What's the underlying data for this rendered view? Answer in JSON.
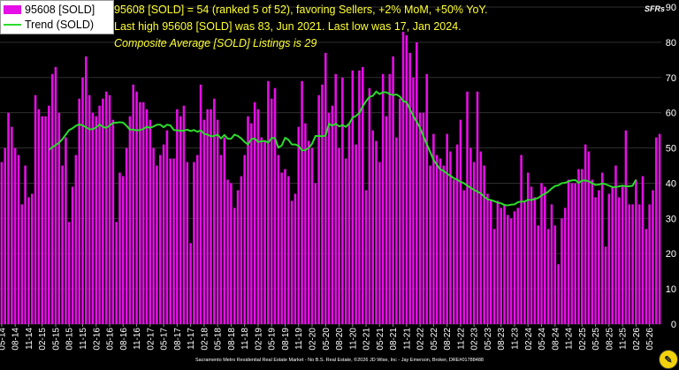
{
  "legend": {
    "bar_label": "95608 [SOLD]",
    "line_label": "Trend (SOLD)"
  },
  "headline": {
    "line1": "95608 [SOLD] = 54 (ranked 5 of 52), favoring Sellers, +2% MoM, +50% YoY.",
    "line2": "Last high 95608 [SOLD] was 83, Jun 2021. Last low was 17, Jan 2024.",
    "line3": "Composite Average [SOLD] Listings is 29"
  },
  "units_label": "SFRs",
  "footer": "Sacramento Metro Residential Real Estate Market - No B.S. Real Estate, ©2026 JD Wise, Inc - Jay Emerson, Broker, DRE#01788488",
  "colors": {
    "bar": "#e60ee6",
    "line": "#2cdc2c",
    "text": "#ffff33",
    "grid": "#2f2f2f",
    "axis_text": "#ffffff"
  },
  "chart_data": {
    "type": "bar",
    "ylim": [
      0,
      90
    ],
    "yticks": [
      0,
      10,
      20,
      30,
      40,
      50,
      60,
      70,
      80,
      90
    ],
    "grid": true,
    "legend_position": "top-left",
    "xticks": [
      "05-14",
      "08-14",
      "11-14",
      "02-15",
      "05-15",
      "08-15",
      "11-15",
      "02-16",
      "05-16",
      "08-16",
      "11-16",
      "02-17",
      "05-17",
      "08-17",
      "11-17",
      "02-18",
      "05-18",
      "08-18",
      "11-18",
      "02-19",
      "05-19",
      "08-19",
      "11-19",
      "02-20",
      "05-20",
      "08-20",
      "11-20",
      "02-21",
      "05-21",
      "08-21",
      "11-21",
      "02-22",
      "05-22",
      "08-22",
      "11-22",
      "02-23",
      "05-23",
      "08-23",
      "11-23",
      "02-24",
      "05-24",
      "08-24",
      "11-24",
      "02-25",
      "05-25",
      "08-25",
      "11-25",
      "02-26",
      "05-26"
    ],
    "series": [
      {
        "name": "95608 [SOLD]",
        "kind": "bar",
        "values": [
          46,
          50,
          60,
          56,
          50,
          48,
          34,
          45,
          36,
          37,
          65,
          61,
          59,
          59,
          62,
          71,
          73,
          60,
          45,
          53,
          29,
          39,
          48,
          64,
          70,
          76,
          65,
          60,
          59,
          62,
          64,
          66,
          65,
          58,
          29,
          43,
          42,
          50,
          59,
          68,
          66,
          63,
          63,
          61,
          58,
          50,
          45,
          48,
          51,
          55,
          47,
          47,
          61,
          59,
          62,
          46,
          23,
          46,
          48,
          68,
          58,
          61,
          61,
          64,
          58,
          48,
          53,
          41,
          40,
          33,
          38,
          42,
          48,
          59,
          57,
          63,
          61,
          53,
          52,
          69,
          64,
          67,
          48,
          43,
          44,
          42,
          35,
          37,
          56,
          69,
          57,
          52,
          50,
          40,
          65,
          68,
          77,
          60,
          62,
          71,
          50,
          70,
          47,
          57,
          72,
          51,
          72,
          73,
          38,
          67,
          55,
          52,
          46,
          71,
          59,
          71,
          76,
          53,
          64,
          83,
          82,
          77,
          70,
          80,
          60,
          60,
          71,
          45,
          54,
          48,
          47,
          45,
          54,
          49,
          41,
          51,
          58,
          38,
          66,
          50,
          46,
          66,
          49,
          45,
          37,
          35,
          27,
          35,
          33,
          34,
          31,
          30,
          32,
          33,
          48,
          35,
          43,
          39,
          36,
          28,
          40,
          39,
          27,
          34,
          28,
          17,
          30,
          33,
          41,
          40,
          40,
          44,
          44,
          51,
          49,
          41,
          36,
          38,
          43,
          22,
          37,
          39,
          45,
          36,
          39,
          55,
          34,
          34,
          41,
          34,
          42,
          27,
          34,
          38,
          53,
          54
        ]
      },
      {
        "name": "Trend (SOLD)",
        "kind": "line",
        "values": [
          null,
          null,
          null,
          null,
          null,
          null,
          null,
          null,
          null,
          null,
          null,
          null,
          null,
          null,
          49.5,
          50.2,
          50.8,
          51.5,
          52.5,
          53.8,
          55.1,
          55.6,
          56.3,
          56.7,
          56.4,
          55.9,
          55.3,
          55.3,
          55.8,
          56.7,
          56.0,
          55.7,
          56.4,
          57.1,
          57.2,
          57.3,
          57.2,
          56.3,
          55.2,
          55.2,
          55.0,
          55.1,
          55.4,
          56.0,
          55.7,
          56.1,
          56.6,
          56.6,
          55.9,
          56.6,
          56.4,
          55.1,
          55.0,
          54.9,
          54.9,
          55.2,
          54.8,
          55.1,
          54.6,
          55.0,
          54.0,
          53.8,
          53.3,
          53.4,
          53.8,
          52.7,
          53.7,
          52.6,
          52.6,
          53.8,
          53.4,
          52.7,
          51.7,
          51.0,
          52.5,
          52.7,
          51.7,
          51.9,
          52.0,
          51.5,
          52.8,
          52.8,
          50.1,
          50.7,
          52.9,
          52.3,
          51.0,
          51.0,
          50.6,
          49.3,
          49.4,
          50.0,
          51.2,
          53.4,
          53.4,
          53.3,
          53.5,
          56.9,
          56.3,
          56.9,
          56.1,
          56.5,
          56.0,
          56.9,
          58.6,
          59.1,
          59.9,
          61.8,
          63.3,
          64.5,
          64.8,
          66.0,
          65.3,
          65.8,
          65.8,
          65.3,
          65.0,
          65.2,
          64.6,
          63.3,
          63.0,
          61.0,
          59.1,
          57.4,
          55.7,
          53.3,
          51.0,
          48.9,
          46.6,
          45.2,
          43.9,
          43.5,
          42.7,
          42.1,
          41.4,
          41.0,
          40.4,
          40.0,
          39.3,
          38.7,
          38.1,
          37.6,
          37.1,
          36.2,
          35.4,
          35.2,
          34.9,
          34.5,
          34.3,
          33.8,
          33.7,
          33.9,
          34.0,
          34.6,
          34.8,
          34.8,
          35.3,
          35.2,
          35.5,
          35.8,
          36.5,
          37.0,
          37.6,
          38.5,
          39.2,
          39.4,
          40.0,
          40.1,
          40.5,
          40.8,
          40.9,
          40.1,
          40.7,
          40.8,
          40.5,
          40.0,
          39.5,
          39.6,
          39.9,
          39.7,
          39.3,
          38.9,
          38.9,
          39.1,
          39.3,
          39.1,
          39.1,
          39.3,
          41.0,
          null,
          null,
          null,
          null,
          null,
          null,
          null,
          null,
          null
        ]
      }
    ]
  }
}
